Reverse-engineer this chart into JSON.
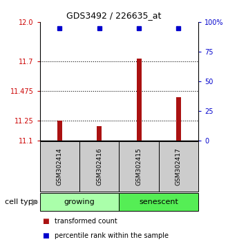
{
  "title": "GDS3492 / 226635_at",
  "samples": [
    "GSM302414",
    "GSM302416",
    "GSM302415",
    "GSM302417"
  ],
  "bar_values": [
    11.25,
    11.21,
    11.72,
    11.43
  ],
  "bar_baseline": 11.1,
  "percentile_y": 11.95,
  "ylim_left": [
    11.1,
    12.0
  ],
  "ylim_right": [
    0,
    100
  ],
  "left_yticks": [
    11.1,
    11.25,
    11.475,
    11.7,
    12.0
  ],
  "right_yticks": [
    0,
    25,
    50,
    75,
    100
  ],
  "right_yticklabels": [
    "0",
    "25",
    "50",
    "75",
    "100%"
  ],
  "dotted_lines": [
    11.25,
    11.475,
    11.7
  ],
  "bar_color": "#aa1111",
  "blue_color": "#0000cc",
  "label_growing": "growing",
  "label_senescent": "senescent",
  "cell_type_label": "cell type",
  "legend_red": "transformed count",
  "legend_blue": "percentile rank within the sample",
  "bar_width": 0.12,
  "x_positions": [
    1,
    2,
    3,
    4
  ],
  "xlim": [
    0.5,
    4.5
  ],
  "group_color_growing": "#aaffaa",
  "group_color_senescent": "#55ee55",
  "sample_box_color": "#cccccc",
  "left_tick_color": "#cc0000",
  "right_tick_color": "#0000cc"
}
